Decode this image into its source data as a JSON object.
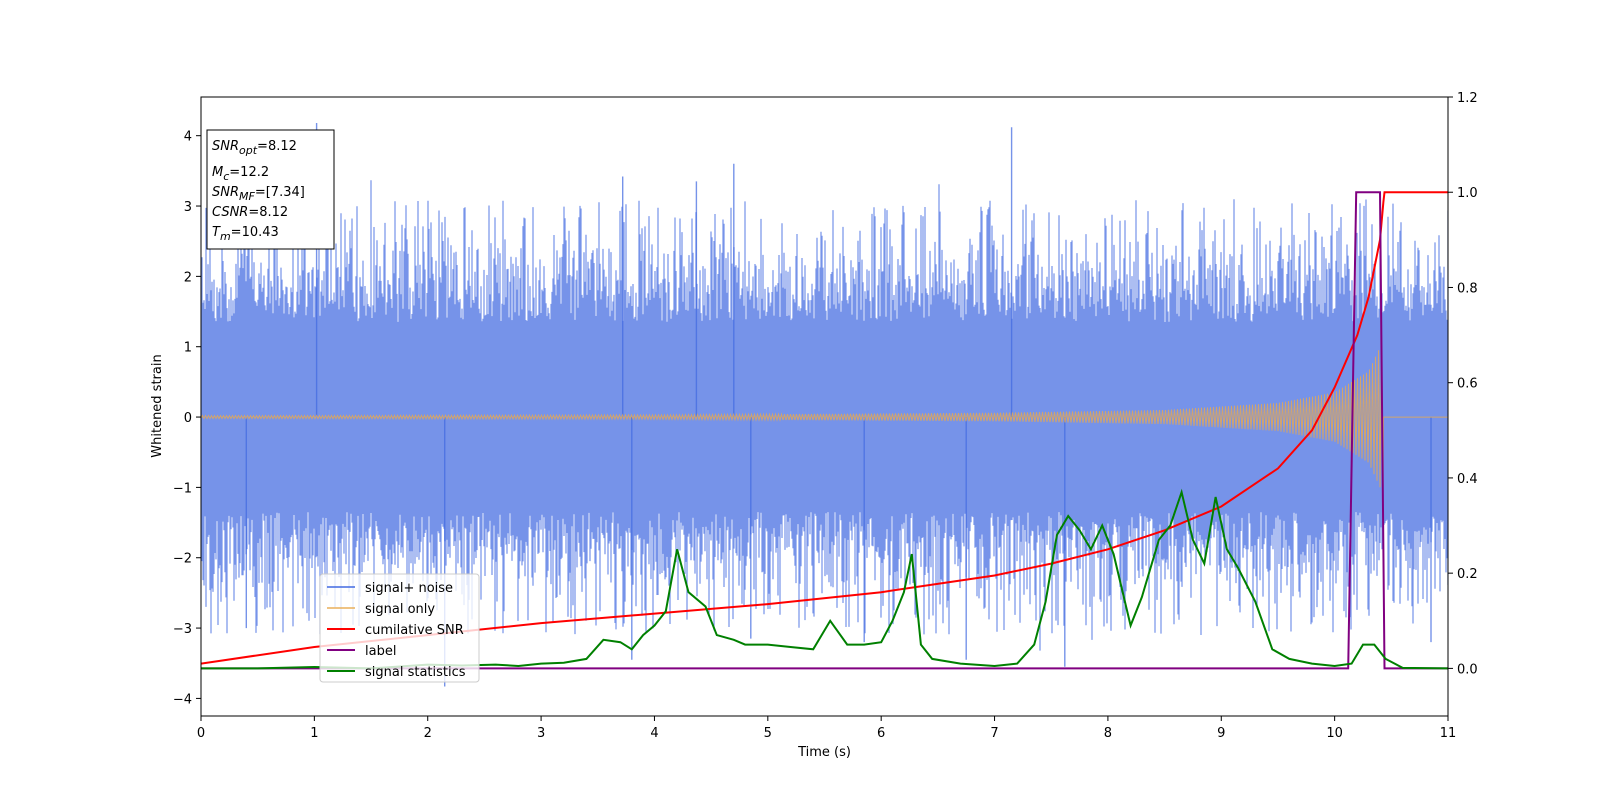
{
  "chart_data": {
    "type": "line",
    "xlabel": "Time (s)",
    "ylabel": "Whitened strain",
    "xlim": [
      0,
      11
    ],
    "ylim": [
      -4.25,
      4.55
    ],
    "y2lim": [
      -0.1,
      1.2
    ],
    "x_ticks": [
      0,
      1,
      2,
      3,
      4,
      5,
      6,
      7,
      8,
      9,
      10,
      11
    ],
    "y_ticks": [
      -4,
      -3,
      -2,
      -1,
      0,
      1,
      2,
      3,
      4
    ],
    "y2_ticks": [
      0.0,
      0.2,
      0.4,
      0.6,
      0.8,
      1.0,
      1.2
    ],
    "colors": {
      "signal_noise": "#4169e1",
      "signal_only": "#e8a94f",
      "cumulative_snr": "#ff0000",
      "label": "#800080",
      "signal_statistics": "#008000"
    },
    "annotation": {
      "lines": [
        {
          "main": "SNR",
          "sub": "opt",
          "value": "=8.12"
        },
        {
          "main": "M",
          "sub": "c",
          "value": "=12.2"
        },
        {
          "main": "SNR",
          "sub": "MF",
          "value": "=[7.34]"
        },
        {
          "main": "CSNR",
          "sub": "",
          "value": "=8.12"
        },
        {
          "main": "T",
          "sub": "m",
          "value": "=10.43"
        }
      ]
    },
    "legend": {
      "placement": "lower-left",
      "entries": [
        "signal+ noise",
        "signal only",
        "cumilative SNR",
        "label",
        "signal statistics"
      ]
    },
    "series": [
      {
        "name": "signal+ noise",
        "axis": "left",
        "style": "noise-band",
        "x_range": [
          0,
          11
        ],
        "band_low": -1.35,
        "band_high": 1.35,
        "typical_extreme": 2.6,
        "spikes": [
          {
            "x": 1.02,
            "y": 4.18
          },
          {
            "x": 7.15,
            "y": 4.12
          },
          {
            "x": 4.7,
            "y": 3.6
          },
          {
            "x": 3.72,
            "y": 3.42
          },
          {
            "x": 4.37,
            "y": 3.35
          },
          {
            "x": 7.15,
            "y": 3.5
          },
          {
            "x": 2.15,
            "y": -3.83
          },
          {
            "x": 7.62,
            "y": -3.55
          },
          {
            "x": 6.75,
            "y": -3.45
          },
          {
            "x": 3.8,
            "y": -3.45
          },
          {
            "x": 0.4,
            "y": -3.0
          },
          {
            "x": 10.85,
            "y": -3.2
          },
          {
            "x": 4.85,
            "y": -3.15
          },
          {
            "x": 5.85,
            "y": -3.2
          }
        ]
      },
      {
        "name": "signal only",
        "axis": "left",
        "style": "chirp",
        "x_range": [
          0,
          10.43
        ],
        "amplitude_points": [
          [
            0,
            0.02
          ],
          [
            4,
            0.03
          ],
          [
            7,
            0.06
          ],
          [
            8.5,
            0.1
          ],
          [
            9.5,
            0.2
          ],
          [
            10,
            0.35
          ],
          [
            10.3,
            0.65
          ],
          [
            10.43,
            1.1
          ]
        ]
      },
      {
        "name": "cumilative SNR",
        "axis": "right",
        "x": [
          0,
          1,
          2,
          3,
          4,
          5,
          6,
          7,
          7.5,
          8,
          8.5,
          9,
          9.5,
          9.8,
          10,
          10.2,
          10.3,
          10.4,
          10.43,
          10.44,
          11
        ],
        "values": [
          0.01,
          0.045,
          0.07,
          0.095,
          0.115,
          0.135,
          0.16,
          0.195,
          0.22,
          0.25,
          0.29,
          0.34,
          0.42,
          0.5,
          0.59,
          0.7,
          0.78,
          0.9,
          0.98,
          1.0,
          1.0
        ]
      },
      {
        "name": "label",
        "axis": "right",
        "x": [
          0,
          10.12,
          10.19,
          10.4,
          10.44,
          11
        ],
        "values": [
          0,
          0,
          1.0,
          1.0,
          0,
          0
        ]
      },
      {
        "name": "signal statistics",
        "axis": "right",
        "x": [
          0,
          0.5,
          1,
          1.5,
          2,
          2.3,
          2.6,
          2.8,
          3,
          3.2,
          3.4,
          3.55,
          3.7,
          3.8,
          3.9,
          4.0,
          4.1,
          4.2,
          4.3,
          4.45,
          4.55,
          4.7,
          4.8,
          4.9,
          5.0,
          5.2,
          5.4,
          5.55,
          5.7,
          5.85,
          6.0,
          6.1,
          6.2,
          6.27,
          6.35,
          6.45,
          6.7,
          7.0,
          7.2,
          7.35,
          7.45,
          7.55,
          7.65,
          7.75,
          7.85,
          7.95,
          8.05,
          8.2,
          8.3,
          8.45,
          8.55,
          8.65,
          8.75,
          8.85,
          8.95,
          9.05,
          9.15,
          9.3,
          9.45,
          9.6,
          9.8,
          10.0,
          10.15,
          10.25,
          10.35,
          10.45,
          10.6,
          11
        ],
        "values": [
          0.0,
          0.0,
          0.003,
          0.0,
          0.008,
          0.006,
          0.008,
          0.005,
          0.01,
          0.012,
          0.02,
          0.06,
          0.055,
          0.04,
          0.07,
          0.09,
          0.12,
          0.25,
          0.16,
          0.13,
          0.07,
          0.06,
          0.05,
          0.05,
          0.05,
          0.045,
          0.04,
          0.1,
          0.05,
          0.05,
          0.055,
          0.1,
          0.16,
          0.24,
          0.05,
          0.02,
          0.01,
          0.005,
          0.01,
          0.05,
          0.14,
          0.28,
          0.32,
          0.29,
          0.25,
          0.3,
          0.24,
          0.09,
          0.15,
          0.27,
          0.3,
          0.37,
          0.27,
          0.22,
          0.36,
          0.25,
          0.21,
          0.14,
          0.04,
          0.02,
          0.01,
          0.005,
          0.01,
          0.05,
          0.05,
          0.02,
          0.001,
          0.0
        ]
      }
    ]
  }
}
